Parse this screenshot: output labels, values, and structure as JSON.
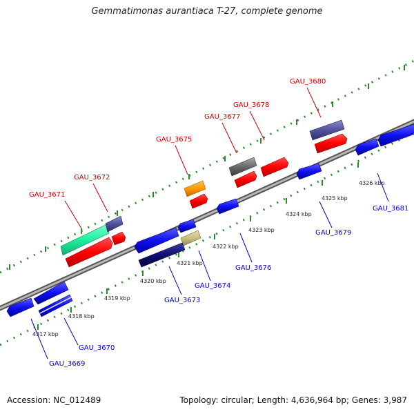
{
  "title": "Gemmatimonas aurantiaca T-27, complete genome",
  "footer": {
    "accession": "Accession: NC_012489",
    "summary": "Topology: circular; Length: 4,636,964 bp; Genes: 3,987"
  },
  "colors": {
    "backbone": "#888888",
    "tick_dots": "#2a8a2a",
    "top_label": "#cc0000",
    "bottom_label": "#0000cc"
  },
  "kbp_labels": [
    "4317 kbp",
    "4318 kbp",
    "4319 kbp",
    "4320 kbp",
    "4321 kbp",
    "4322 kbp",
    "4323 kbp",
    "4324 kbp",
    "4325 kbp",
    "4326 kbp"
  ],
  "genes_top": [
    {
      "name": "GAU_3671"
    },
    {
      "name": "GAU_3672"
    },
    {
      "name": "GAU_3675"
    },
    {
      "name": "GAU_3677"
    },
    {
      "name": "GAU_3678"
    },
    {
      "name": "GAU_3680"
    }
  ],
  "genes_bottom": [
    {
      "name": "GAU_3669"
    },
    {
      "name": "GAU_3670"
    },
    {
      "name": "GAU_3673"
    },
    {
      "name": "GAU_3674"
    },
    {
      "name": "GAU_3676"
    },
    {
      "name": "GAU_3679"
    },
    {
      "name": "GAU_3681"
    }
  ]
}
